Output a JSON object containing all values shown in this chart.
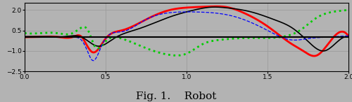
{
  "title": "Fig. 1.    Robot",
  "xlim": [
    0.0,
    2.0
  ],
  "ylim": [
    -2.5,
    2.5
  ],
  "yticks": [
    -2.5,
    -1.0,
    0.5,
    2.0
  ],
  "xticks": [
    0.0,
    0.5,
    1.0,
    1.5,
    2.0
  ],
  "background_color": "#b3b3b3",
  "grid_color": "#999999",
  "red_x": [
    0.0,
    0.05,
    0.1,
    0.2,
    0.3,
    0.35,
    0.38,
    0.42,
    0.5,
    0.6,
    0.75,
    0.9,
    1.05,
    1.15,
    1.25,
    1.35,
    1.5,
    1.65,
    1.72,
    1.8,
    1.9,
    2.0
  ],
  "red_y": [
    0.0,
    0.02,
    0.03,
    0.03,
    0.03,
    0.05,
    -0.5,
    -1.1,
    -0.1,
    0.5,
    1.3,
    2.0,
    2.2,
    2.25,
    2.2,
    1.8,
    0.8,
    -0.5,
    -1.0,
    -1.35,
    -0.1,
    0.08
  ],
  "black_x": [
    0.0,
    0.05,
    0.15,
    0.25,
    0.35,
    0.4,
    0.45,
    0.55,
    0.7,
    0.9,
    1.05,
    1.15,
    1.25,
    1.4,
    1.55,
    1.65,
    1.75,
    1.85,
    1.95,
    2.0
  ],
  "black_y": [
    0.05,
    0.05,
    0.05,
    0.05,
    0.02,
    -0.35,
    -0.65,
    -0.1,
    0.6,
    1.5,
    2.0,
    2.2,
    2.15,
    1.85,
    1.25,
    0.7,
    -0.3,
    -1.0,
    -0.15,
    0.05
  ],
  "green_x": [
    0.0,
    0.1,
    0.2,
    0.3,
    0.35,
    0.37,
    0.4,
    0.43,
    0.5,
    0.6,
    0.75,
    0.9,
    1.0,
    1.1,
    1.2,
    1.4,
    1.6,
    1.7,
    1.8,
    1.9,
    2.0
  ],
  "green_y": [
    0.3,
    0.3,
    0.3,
    0.32,
    0.7,
    0.75,
    0.3,
    -0.6,
    -0.3,
    -0.1,
    -0.8,
    -1.3,
    -1.2,
    -0.5,
    -0.2,
    -0.05,
    0.05,
    0.5,
    1.4,
    1.85,
    2.0
  ],
  "blue_x": [
    0.0,
    0.1,
    0.2,
    0.3,
    0.35,
    0.38,
    0.42,
    0.48,
    0.6,
    0.75,
    0.9,
    1.05,
    1.15,
    1.3,
    1.5,
    1.65,
    1.75,
    1.85,
    1.93,
    2.0
  ],
  "blue_y": [
    0.0,
    0.0,
    0.0,
    0.0,
    -0.2,
    -0.8,
    -1.7,
    -0.5,
    0.4,
    1.3,
    1.8,
    1.85,
    1.8,
    1.5,
    0.5,
    -0.2,
    -0.1,
    0.0,
    0.05,
    0.1
  ]
}
